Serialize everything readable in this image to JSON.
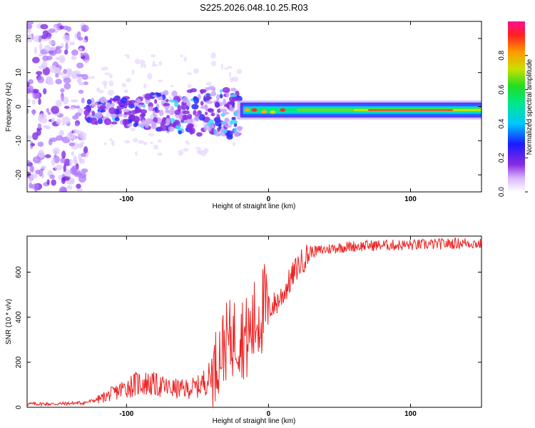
{
  "title": "S225.2026.048.10.25.R03",
  "chart_data": [
    {
      "type": "heatmap",
      "description_role": "spectrogram",
      "xlabel": "Height of straight line (km)",
      "ylabel": "Frequency (Hz)",
      "xlim": [
        -170,
        150
      ],
      "ylim": [
        -25,
        25
      ],
      "xticks": [
        -100,
        0,
        100
      ],
      "yticks": [
        -20,
        -10,
        0,
        10,
        20
      ],
      "colorbar": {
        "label": "Normalized spectral amplitude",
        "range": [
          0,
          1
        ],
        "ticks": [
          0.0,
          0.2,
          0.4,
          0.6,
          0.8
        ]
      },
      "regions": [
        {
          "x_range": [
            -170,
            -130
          ],
          "freq_range": [
            -25,
            25
          ],
          "amplitude": "low (noise)"
        },
        {
          "x_range": [
            -130,
            -20
          ],
          "freq_range": [
            -10,
            12
          ],
          "amplitude": "low-mid (scattered blobs)"
        },
        {
          "x_range": [
            -20,
            150
          ],
          "freq_range": [
            -3,
            2
          ],
          "amplitude": "high (band centered near -1 Hz, red at 70-130 km)"
        }
      ]
    },
    {
      "type": "line",
      "xlabel": "Height of straight line (km)",
      "ylabel": "SNR (10 * v/v)",
      "xlim": [
        -170,
        150
      ],
      "ylim": [
        0,
        760
      ],
      "xticks": [
        -100,
        0,
        100
      ],
      "yticks": [
        0,
        200,
        400,
        600
      ],
      "color": "#ee2222",
      "series": [
        {
          "name": "SNR",
          "x": [
            -170,
            -150,
            -130,
            -120,
            -110,
            -100,
            -90,
            -80,
            -70,
            -60,
            -50,
            -40,
            -35,
            -30,
            -25,
            -20,
            -15,
            -10,
            -5,
            0,
            5,
            10,
            15,
            20,
            25,
            30,
            40,
            50,
            60,
            80,
            100,
            120,
            140,
            150
          ],
          "y": [
            15,
            15,
            20,
            35,
            60,
            90,
            110,
            100,
            85,
            80,
            90,
            140,
            230,
            290,
            310,
            330,
            300,
            370,
            430,
            440,
            460,
            500,
            560,
            620,
            660,
            690,
            700,
            710,
            715,
            720,
            720,
            725,
            730,
            725
          ]
        }
      ]
    }
  ]
}
